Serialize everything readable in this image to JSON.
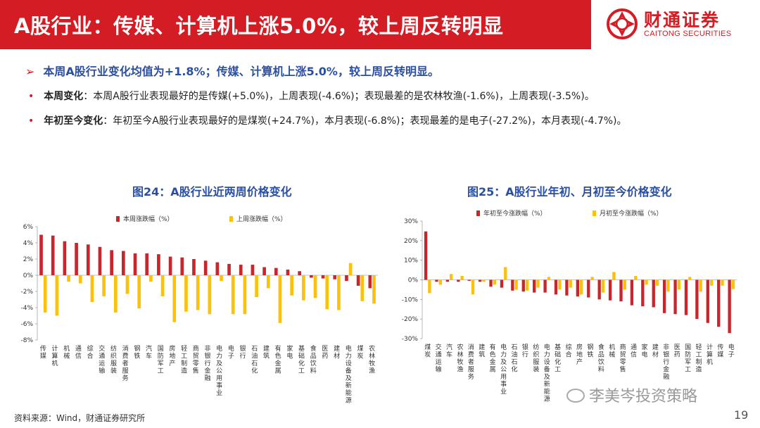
{
  "header": {
    "title": "A股行业：传媒、计算机上涨5.0%，较上周反转明显",
    "logo_cn": "财通证券",
    "logo_en": "CAITONG SECURITIES"
  },
  "summary": {
    "arrow": "➢",
    "text": "本周A股行业变化均值为+1.8%；传媒、计算机上涨5.0%，较上周反转明显。"
  },
  "bullets": [
    {
      "dot": "•",
      "key": "本周变化",
      "text": "：本周A股行业表现最好的是传媒(+5.0%)，上周表现(-4.6%)；表现最差的是农林牧渔(-1.6%)，上周表现(-3.5%)。"
    },
    {
      "dot": "•",
      "key": "年初至今变化",
      "text": "：年初至今A股行业表现最好的是煤炭(+24.7%)，本月表现(-6.8%)；表现最差的是电子(-27.2%)，本月表现(-4.7%)。"
    }
  ],
  "footer": {
    "source": "资料来源：Wind，财通证券研究所",
    "page": "19",
    "watermark": "李美岑投资策略"
  },
  "colors": {
    "red": "#c8252c",
    "yellow": "#fbc10b",
    "title_blue": "#2b4fa0",
    "header_red": "#d41c24"
  },
  "chart_data": [
    {
      "type": "bar",
      "title": "图24：A股行业近两周价格变化",
      "yticks": [
        "6%",
        "4%",
        "2%",
        "0%",
        "-2%",
        "-4%",
        "-6%",
        "-8%"
      ],
      "ylim": [
        -8,
        6
      ],
      "ystep": 2,
      "legend_position": "top",
      "categories": [
        "传媒",
        "计算机",
        "机械",
        "通信",
        "综合",
        "交通运输",
        "纺织服装",
        "消费者服务",
        "钢铁",
        "汽车",
        "国防军工",
        "房地产",
        "轻工制造",
        "商贸零售",
        "非银行金融",
        "电力及公用事业",
        "电子",
        "银行",
        "石油石化",
        "建筑",
        "有色金属",
        "家电",
        "基础化工",
        "食品饮料",
        "医药",
        "建材",
        "电力设备及新能源",
        "煤炭",
        "农林牧渔"
      ],
      "series": [
        {
          "name": "本周涨跌幅（%）",
          "color": "#c8252c",
          "values": [
            5.0,
            4.9,
            4.2,
            4.0,
            3.8,
            3.5,
            3.1,
            3.0,
            2.7,
            2.7,
            2.6,
            2.3,
            2.2,
            2.0,
            1.8,
            1.6,
            1.4,
            1.3,
            1.3,
            1.0,
            0.9,
            0.7,
            0.5,
            -0.3,
            -0.4,
            -0.5,
            -0.7,
            -1.3,
            -1.6
          ]
        },
        {
          "name": "上周涨跌幅（%）",
          "color": "#fbc10b",
          "values": [
            -4.6,
            -5.0,
            -0.8,
            -1.0,
            -3.3,
            -2.6,
            -4.6,
            -2.3,
            -4.1,
            -0.8,
            -2.6,
            -5.8,
            -4.5,
            -4.3,
            -4.8,
            -0.7,
            -4.8,
            -4.8,
            -2.7,
            -1.6,
            -5.9,
            -2.5,
            -3.1,
            -2.8,
            -4.2,
            -4.3,
            1.5,
            -3.2,
            -3.5
          ]
        }
      ]
    },
    {
      "type": "bar",
      "title": "图25：A股行业年初、月初至今价格变化",
      "yticks": [
        "30%",
        "20%",
        "10%",
        "0%",
        "-10%",
        "-20%",
        "-30%"
      ],
      "ylim": [
        -30,
        30
      ],
      "ystep": 10,
      "legend_position": "top",
      "categories": [
        "煤炭",
        "交通运输",
        "汽车",
        "农林牧渔",
        "消费者服务",
        "建筑",
        "有色金属",
        "电力及公用事业",
        "石油石化",
        "银行",
        "纺织服装",
        "电力设备及新能源",
        "基础化工",
        "综合",
        "房地产",
        "钢铁",
        "食品饮料",
        "机械",
        "商贸零售",
        "通信",
        "家电",
        "建材",
        "非银行金融",
        "医药",
        "国防军工",
        "轻工制造",
        "计算机",
        "传媒",
        "电子"
      ],
      "series": [
        {
          "name": "年初至今涨跌幅（%）",
          "color": "#c8252c",
          "values": [
            24.7,
            -1.0,
            -1.0,
            -1.0,
            -0.5,
            -1.0,
            -3.5,
            -4.0,
            -5.5,
            -6.0,
            -6.5,
            -6.5,
            -7.5,
            -8.0,
            -8.5,
            -9.0,
            -10.0,
            -10.5,
            -11.0,
            -13.0,
            -13.5,
            -14.0,
            -17.0,
            -17.5,
            -18.0,
            -20.0,
            -22.0,
            -24.0,
            -27.2
          ]
        },
        {
          "name": "月初至今涨跌幅（%）",
          "color": "#fbc10b",
          "values": [
            -6.8,
            -2.5,
            3.0,
            2.0,
            -7.5,
            -1.0,
            -2.5,
            6.5,
            -5.0,
            -5.5,
            -4.0,
            1.5,
            -5.0,
            -4.0,
            -7.5,
            1.5,
            -6.5,
            4.0,
            -5.0,
            2.0,
            -2.5,
            -3.0,
            -6.0,
            -5.0,
            1.5,
            -6.0,
            -3.0,
            -3.0,
            -4.7
          ]
        }
      ]
    }
  ]
}
